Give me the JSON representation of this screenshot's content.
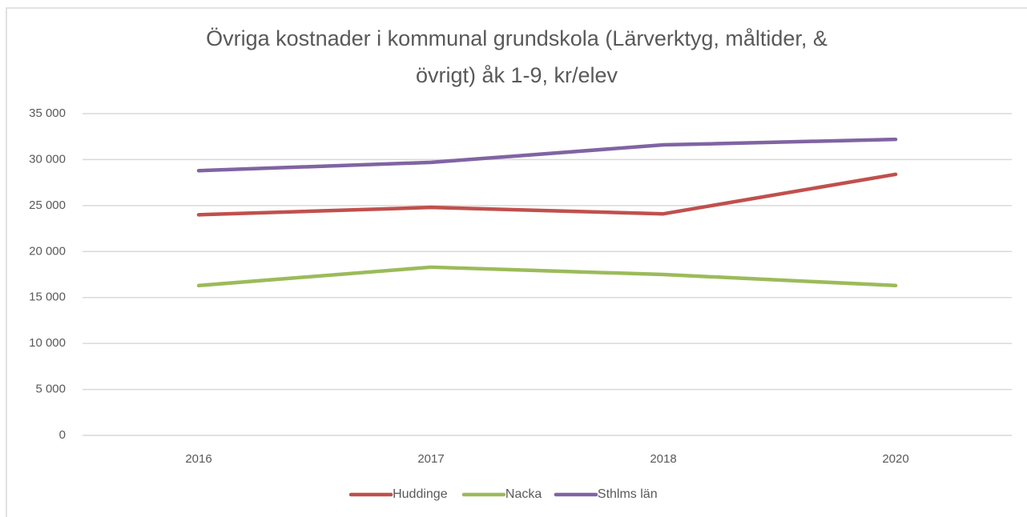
{
  "chart_data": {
    "type": "line",
    "title": [
      "Övriga kostnader i kommunal grundskola (Lärverktyg, måltider,  &",
      "övrigt) åk 1-9, kr/elev"
    ],
    "categories": [
      "2016",
      "2017",
      "2018",
      "2020"
    ],
    "series": [
      {
        "name": "Huddinge",
        "color": "#c0504d",
        "values": [
          24000,
          24800,
          24100,
          28400
        ]
      },
      {
        "name": "Nacka",
        "color": "#9bbb59",
        "values": [
          16300,
          18300,
          17500,
          16300
        ]
      },
      {
        "name": "Sthlms län",
        "color": "#8064a2",
        "values": [
          28800,
          29700,
          31600,
          32200
        ]
      }
    ],
    "ylim": [
      0,
      35000
    ],
    "yticks": [
      0,
      {
        "value": 5000,
        "label": "5 000"
      },
      {
        "value": 10000,
        "label": "10 000"
      },
      {
        "value": 15000,
        "label": "15 000"
      },
      {
        "value": 20000,
        "label": "20 000"
      },
      {
        "value": 25000,
        "label": "25 000"
      },
      {
        "value": 30000,
        "label": "30 000"
      },
      {
        "value": 35000,
        "label": "35 000"
      }
    ],
    "grid": true,
    "legend": "bottom"
  }
}
